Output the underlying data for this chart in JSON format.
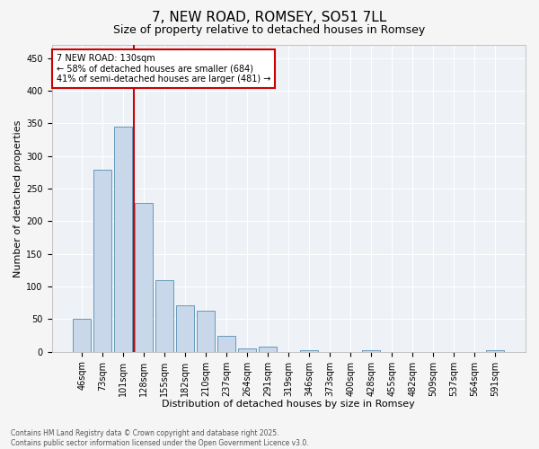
{
  "title": "7, NEW ROAD, ROMSEY, SO51 7LL",
  "subtitle": "Size of property relative to detached houses in Romsey",
  "xlabel": "Distribution of detached houses by size in Romsey",
  "ylabel": "Number of detached properties",
  "categories": [
    "46sqm",
    "73sqm",
    "101sqm",
    "128sqm",
    "155sqm",
    "182sqm",
    "210sqm",
    "237sqm",
    "264sqm",
    "291sqm",
    "319sqm",
    "346sqm",
    "373sqm",
    "400sqm",
    "428sqm",
    "455sqm",
    "482sqm",
    "509sqm",
    "537sqm",
    "564sqm",
    "591sqm"
  ],
  "values": [
    51,
    279,
    345,
    228,
    110,
    71,
    63,
    24,
    5,
    8,
    0,
    2,
    0,
    0,
    3,
    0,
    0,
    0,
    0,
    0,
    3
  ],
  "bar_color": "#c8d8ea",
  "bar_edge_color": "#6699bb",
  "vline_color": "#cc0000",
  "vline_x_index": 3,
  "annotation_title": "7 NEW ROAD: 130sqm",
  "annotation_line1": "← 58% of detached houses are smaller (684)",
  "annotation_line2": "41% of semi-detached houses are larger (481) →",
  "annotation_box_color": "#cc0000",
  "ylim": [
    0,
    470
  ],
  "yticks": [
    0,
    50,
    100,
    150,
    200,
    250,
    300,
    350,
    400,
    450
  ],
  "footer_line1": "Contains HM Land Registry data © Crown copyright and database right 2025.",
  "footer_line2": "Contains public sector information licensed under the Open Government Licence v3.0.",
  "bg_color": "#eef2f6",
  "title_fontsize": 11,
  "subtitle_fontsize": 9,
  "axis_label_fontsize": 8,
  "tick_fontsize": 7
}
